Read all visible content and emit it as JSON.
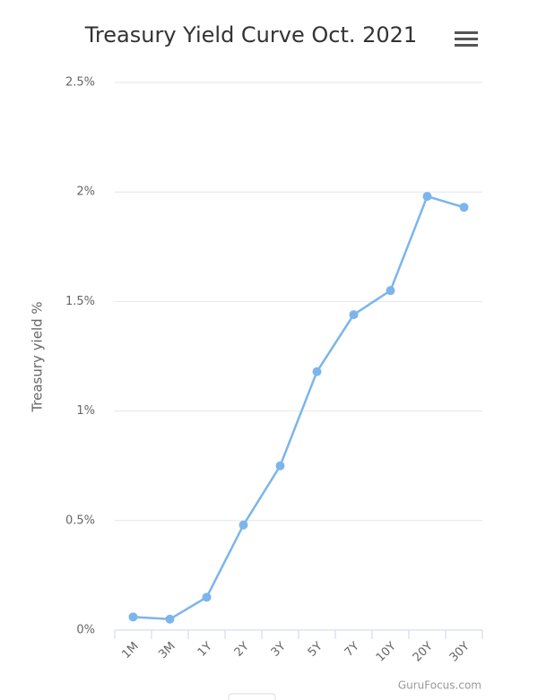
{
  "chart_data": {
    "type": "line",
    "title": "Treasury Yield Curve Oct. 2021",
    "y_label": "Treasury yield %",
    "credits": "GuruFocus.com",
    "categories": [
      "1M",
      "3M",
      "1Y",
      "2Y",
      "3Y",
      "5Y",
      "7Y",
      "10Y",
      "20Y",
      "30Y"
    ],
    "values": [
      0.06,
      0.05,
      0.15,
      0.48,
      0.75,
      1.18,
      1.44,
      1.55,
      1.98,
      1.93
    ],
    "color": "#7cb5ec",
    "ylim": [
      0,
      2.5
    ],
    "yticks": [
      {
        "value": 0,
        "label": "0%"
      },
      {
        "value": 0.5,
        "label": "0.5%"
      },
      {
        "value": 1,
        "label": "1%"
      },
      {
        "value": 1.5,
        "label": "1.5%"
      },
      {
        "value": 2,
        "label": "2%"
      },
      {
        "value": 2.5,
        "label": "2.5%"
      }
    ],
    "grid": true
  }
}
